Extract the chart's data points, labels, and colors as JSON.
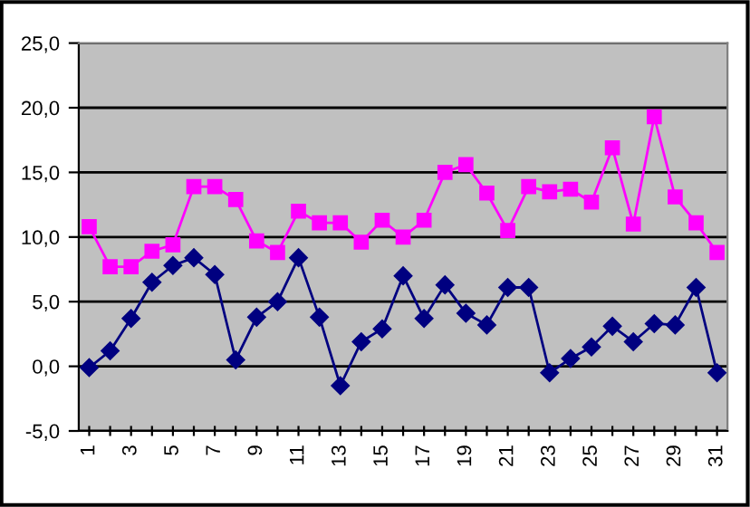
{
  "chart_data": {
    "type": "line",
    "categories": [
      "1",
      null,
      "3",
      null,
      "5",
      null,
      "7",
      null,
      "9",
      null,
      "11",
      null,
      "13",
      null,
      "15",
      null,
      "17",
      null,
      "19",
      null,
      "21",
      null,
      "23",
      null,
      "25",
      null,
      "27",
      null,
      "29",
      null,
      "31"
    ],
    "series": [
      {
        "color": "#ff00ff",
        "marker": "square",
        "values": [
          10.8,
          7.7,
          7.7,
          8.9,
          9.4,
          13.9,
          13.9,
          12.9,
          9.7,
          8.8,
          12.0,
          11.1,
          11.1,
          9.6,
          11.3,
          10.0,
          11.3,
          15.0,
          15.6,
          13.4,
          10.5,
          13.9,
          13.5,
          13.7,
          12.7,
          16.9,
          11.0,
          19.3,
          13.1,
          11.1,
          8.8
        ]
      },
      {
        "color": "#000080",
        "marker": "diamond",
        "values": [
          -0.1,
          1.2,
          3.7,
          6.5,
          7.8,
          8.4,
          7.1,
          0.5,
          3.8,
          5.0,
          8.4,
          3.8,
          -1.5,
          1.9,
          2.9,
          7.0,
          3.7,
          6.3,
          4.1,
          3.2,
          6.1,
          6.1,
          -0.5,
          0.6,
          1.5,
          3.1,
          1.9,
          3.3,
          3.2,
          6.1,
          -0.5
        ]
      }
    ],
    "ylim": [
      -5,
      25
    ],
    "yticks": [
      {
        "value": -5,
        "label": "-5,0"
      },
      {
        "value": 0,
        "label": "0,0"
      },
      {
        "value": 5,
        "label": "5,0"
      },
      {
        "value": 10,
        "label": "10,0"
      },
      {
        "value": 15,
        "label": "15,0"
      },
      {
        "value": 20,
        "label": "20,0"
      },
      {
        "value": 25,
        "label": "25,0"
      }
    ],
    "grid": "y"
  }
}
